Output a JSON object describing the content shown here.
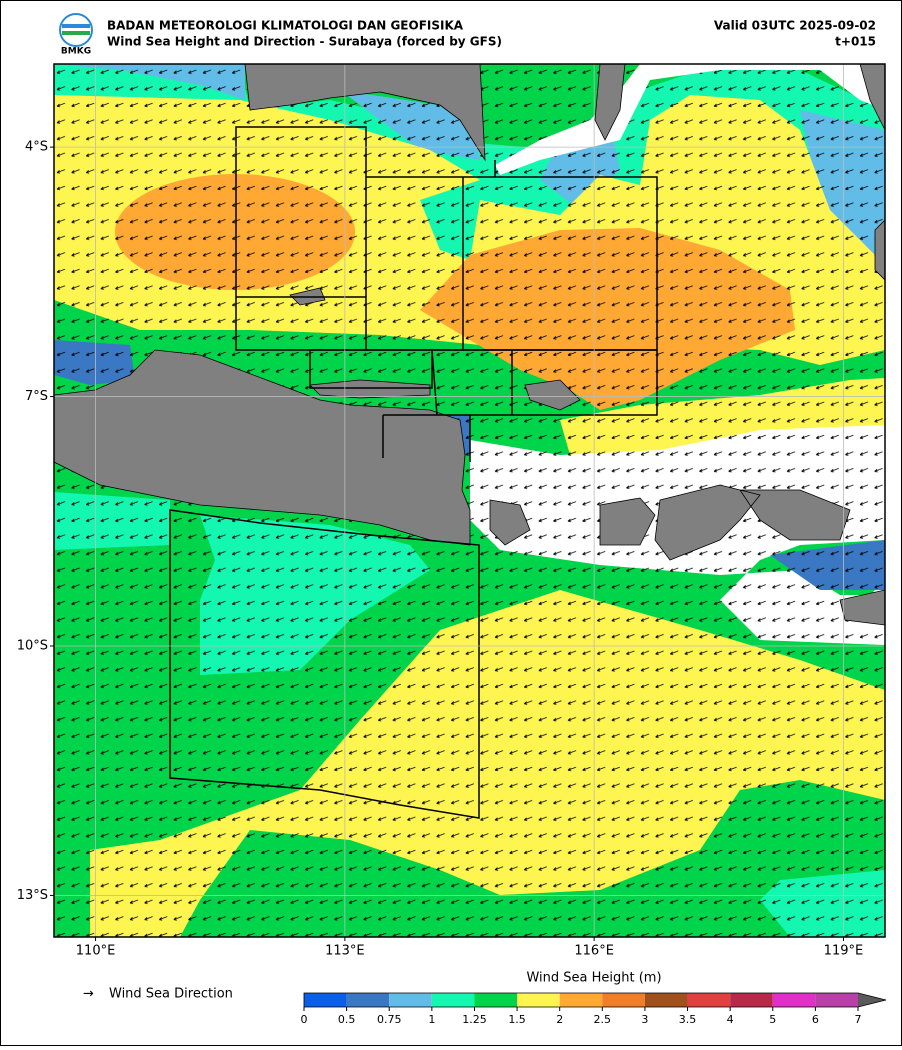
{
  "header": {
    "logo": "BMKG",
    "org": "BADAN METEOROLOGI KLIMATOLOGI DAN GEOFISIKA",
    "title": "Wind Sea Height and Direction - Surabaya (forced by GFS)",
    "valid": "Valid 03UTC 2025-09-02",
    "lead": "t+015"
  },
  "map": {
    "xlim": [
      109.5,
      119.5
    ],
    "ylim": [
      -13.5,
      -3.0
    ],
    "xticks": [
      {
        "value": 110,
        "label": "110°E"
      },
      {
        "value": 113,
        "label": "113°E"
      },
      {
        "value": 116,
        "label": "116°E"
      },
      {
        "value": 119,
        "label": "119°E"
      }
    ],
    "yticks": [
      {
        "value": -4,
        "label": "4°S"
      },
      {
        "value": -7,
        "label": "7°S"
      },
      {
        "value": -10,
        "label": "10°S"
      },
      {
        "value": -13,
        "label": "13°S"
      }
    ],
    "grid": true
  },
  "legend": {
    "symbol": "→",
    "label": "Wind Sea Direction"
  },
  "colorbar": {
    "title": "Wind Sea Height (m)",
    "boundaries": [
      0,
      0.5,
      0.75,
      1,
      1.25,
      1.5,
      2,
      2.5,
      3,
      3.5,
      4,
      5,
      6,
      7
    ],
    "colors": [
      "#0a5fe8",
      "#3a78c4",
      "#62bce8",
      "#14f7b0",
      "#00d44a",
      "#fff550",
      "#ffa834",
      "#f07d28",
      "#a0501a",
      "#e04040",
      "#b82848",
      "#e030c8",
      "#b840a8"
    ],
    "extend": "max",
    "over_color": "#5a5a5a"
  }
}
